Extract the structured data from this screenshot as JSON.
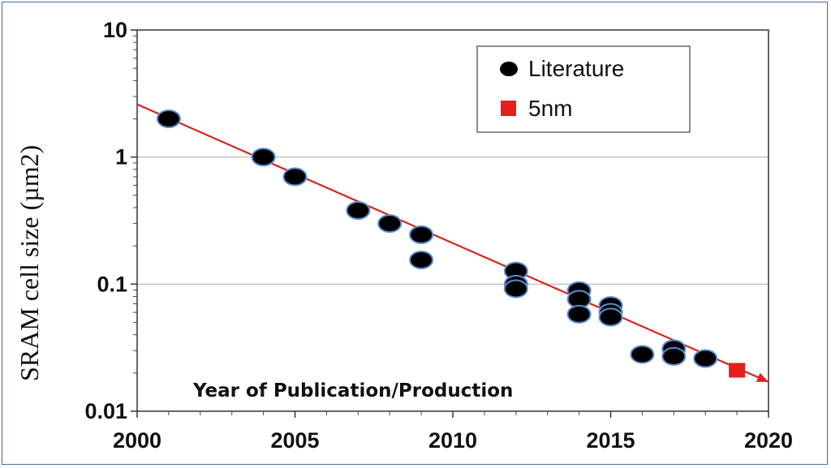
{
  "chart_data": {
    "type": "scatter",
    "title": "",
    "xlabel": "Year of Publication/Production",
    "ylabel": "SRAM cell size  (µm2)",
    "xlim": [
      2000,
      2020
    ],
    "ylim": [
      0.01,
      10
    ],
    "yscale": "log",
    "x_ticks": [
      "2000",
      "2005",
      "2010",
      "2015",
      "2020"
    ],
    "y_ticks": [
      "0.01",
      "0.1",
      "1",
      "10"
    ],
    "grid": "horizontal",
    "legend_position": "top-right",
    "series": [
      {
        "name": "Literature",
        "marker": "circle",
        "color": "#000000",
        "edge_color": "#5b8fd0",
        "x": [
          2001,
          2004,
          2005,
          2007,
          2008,
          2009,
          2009,
          2012,
          2012,
          2012,
          2014,
          2014,
          2014,
          2015,
          2015,
          2015,
          2016,
          2017,
          2017,
          2018
        ],
        "y": [
          2.0,
          1.0,
          0.7,
          0.38,
          0.3,
          0.245,
          0.155,
          0.127,
          0.1,
          0.092,
          0.089,
          0.076,
          0.058,
          0.068,
          0.06,
          0.055,
          0.028,
          0.031,
          0.027,
          0.026
        ]
      },
      {
        "name": "5nm",
        "marker": "square",
        "color": "#e3201b",
        "x": [
          2019
        ],
        "y": [
          0.021
        ]
      }
    ],
    "trend_line": {
      "color": "#d8231f",
      "x": [
        2000,
        2020
      ],
      "y": [
        2.6,
        0.017
      ]
    }
  }
}
